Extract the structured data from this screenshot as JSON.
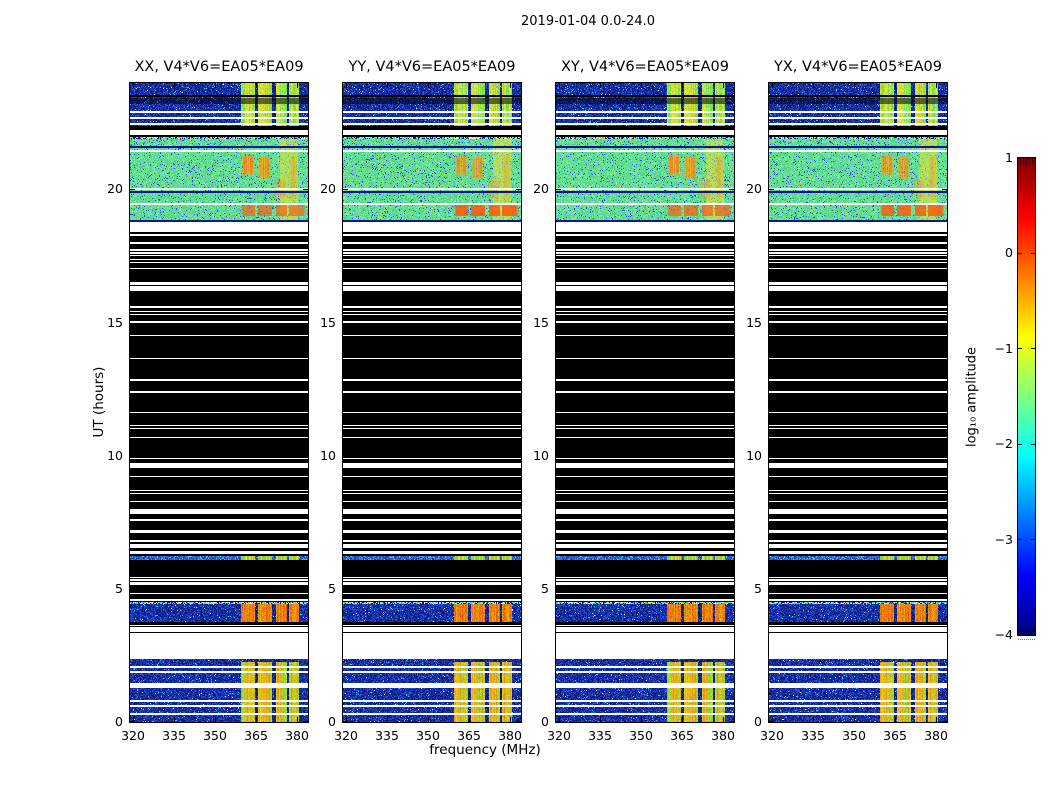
{
  "title": "2019-01-04 0.0-24.0",
  "axes": {
    "xlabel": "frequency (MHz)",
    "ylabel": "UT (hours)",
    "xticks": [
      320,
      335,
      350,
      365,
      380
    ],
    "xtick_labels": [
      "320",
      "335",
      "350",
      "365",
      "380"
    ],
    "yticks": [
      0,
      5,
      10,
      15,
      20
    ],
    "ytick_labels": [
      "0",
      "5",
      "10",
      "15",
      "20"
    ]
  },
  "colorbar": {
    "label": "log₁₀ amplitude",
    "tick_values": [
      1,
      0,
      -1,
      -2,
      -3,
      -4
    ],
    "tick_labels": [
      "1",
      "0",
      "−1",
      "−2",
      "−3",
      "−4"
    ],
    "cmap": "jet",
    "top_color": "#800000",
    "bottom_color": "#000080"
  },
  "panels": [
    {
      "id": "xx",
      "title": "XX, V4*V6=EA05*EA09",
      "seed": 101,
      "upper": 1.0,
      "lower": 0.75
    },
    {
      "id": "yy",
      "title": "YY, V4*V6=EA05*EA09",
      "seed": 202,
      "upper": 0.85,
      "lower": 1.0
    },
    {
      "id": "xy",
      "title": "XY, V4*V6=EA05*EA09",
      "seed": 303,
      "upper": 1.0,
      "lower": 0.8
    },
    {
      "id": "yx",
      "title": "YX, V4*V6=EA05*EA09",
      "seed": 404,
      "upper": 0.9,
      "lower": 0.95
    }
  ],
  "chart_data": {
    "type": "heatmap",
    "title": "2019-01-04 0.0-24.0",
    "xlabel": "frequency (MHz)",
    "ylabel": "UT (hours)",
    "x_range_mhz": [
      319,
      384
    ],
    "y_range_hours": [
      0,
      24
    ],
    "value_range_log10_amplitude": [
      -4,
      1
    ],
    "rfi_band_mhz": [
      359.5,
      380.6
    ],
    "rfi_gap_columns_mhz": [
      [
        364.7,
        365.9
      ],
      [
        371.0,
        372.2
      ],
      [
        376.4,
        377.2
      ]
    ],
    "segments": [
      {
        "t0": 0.0,
        "t1": 1.28,
        "type": "blue",
        "rfi": "warm",
        "white_lines": [
          0.35,
          0.62,
          0.82
        ]
      },
      {
        "t0": 1.28,
        "t1": 1.47,
        "type": "white"
      },
      {
        "t0": 1.47,
        "t1": 2.26,
        "type": "blue",
        "rfi": "warm",
        "white_lines": [
          1.92,
          2.1
        ]
      },
      {
        "t0": 2.26,
        "t1": 2.37,
        "type": "blue",
        "rfi": "none"
      },
      {
        "t0": 2.37,
        "t1": 3.35,
        "type": "white"
      },
      {
        "t0": 3.35,
        "t1": 3.76,
        "type": "black",
        "lines": 3
      },
      {
        "t0": 3.76,
        "t1": 4.51,
        "type": "blue",
        "rfi": "strong",
        "white_lines": [],
        "sparkle_top": true
      },
      {
        "t0": 4.51,
        "t1": 4.69,
        "type": "black",
        "lines": 2
      },
      {
        "t0": 4.69,
        "t1": 6.09,
        "type": "black",
        "lines": 5
      },
      {
        "t0": 6.09,
        "t1": 6.22,
        "type": "thin"
      },
      {
        "t0": 6.22,
        "t1": 6.54,
        "type": "black",
        "lines": 1
      },
      {
        "t0": 6.54,
        "t1": 6.67,
        "type": "white"
      },
      {
        "t0": 6.67,
        "t1": 16.2,
        "type": "black",
        "lines": 28
      },
      {
        "t0": 16.2,
        "t1": 16.38,
        "type": "white"
      },
      {
        "t0": 16.38,
        "t1": 18.25,
        "type": "black",
        "lines": 10
      },
      {
        "t0": 18.25,
        "t1": 18.8,
        "type": "white",
        "black_lines": [
          18.42
        ]
      },
      {
        "t0": 18.8,
        "t1": 21.97,
        "type": "green",
        "sparkle_top": true,
        "white_lines": [
          19.5,
          20.05,
          21.5
        ],
        "blue_lines": [
          18.84,
          19.95,
          21.62
        ],
        "yellow_column_mhz": [
          373.6,
          380.4
        ],
        "upper_blobs": [
          {
            "t": [
              20.5,
              21.35
            ],
            "f": [
              359.5,
              364.8
            ],
            "s": 1.0
          },
          {
            "t": [
              20.35,
              21.3
            ],
            "f": [
              365.6,
              370.6
            ],
            "s": 0.95
          },
          {
            "t": [
              19.6,
              20.45
            ],
            "f": [
              371.2,
              376.2
            ],
            "s": 0.5
          },
          {
            "t": [
              19.6,
              21.3
            ],
            "f": [
              377.0,
              380.4
            ],
            "s": 0.45
          }
        ],
        "lower_row": {
          "t": [
            19.02,
            19.45
          ],
          "f": [
            359.5,
            383.2
          ]
        }
      },
      {
        "t0": 21.97,
        "t1": 22.38,
        "type": "black",
        "lines": 3
      },
      {
        "t0": 22.38,
        "t1": 24.0,
        "type": "blue",
        "rfi": "greenish",
        "white_lines": [
          22.48,
          22.74,
          22.93
        ],
        "black_lines": [
          23.55
        ],
        "dark_sub": [
          23.2,
          23.42
        ]
      }
    ]
  }
}
